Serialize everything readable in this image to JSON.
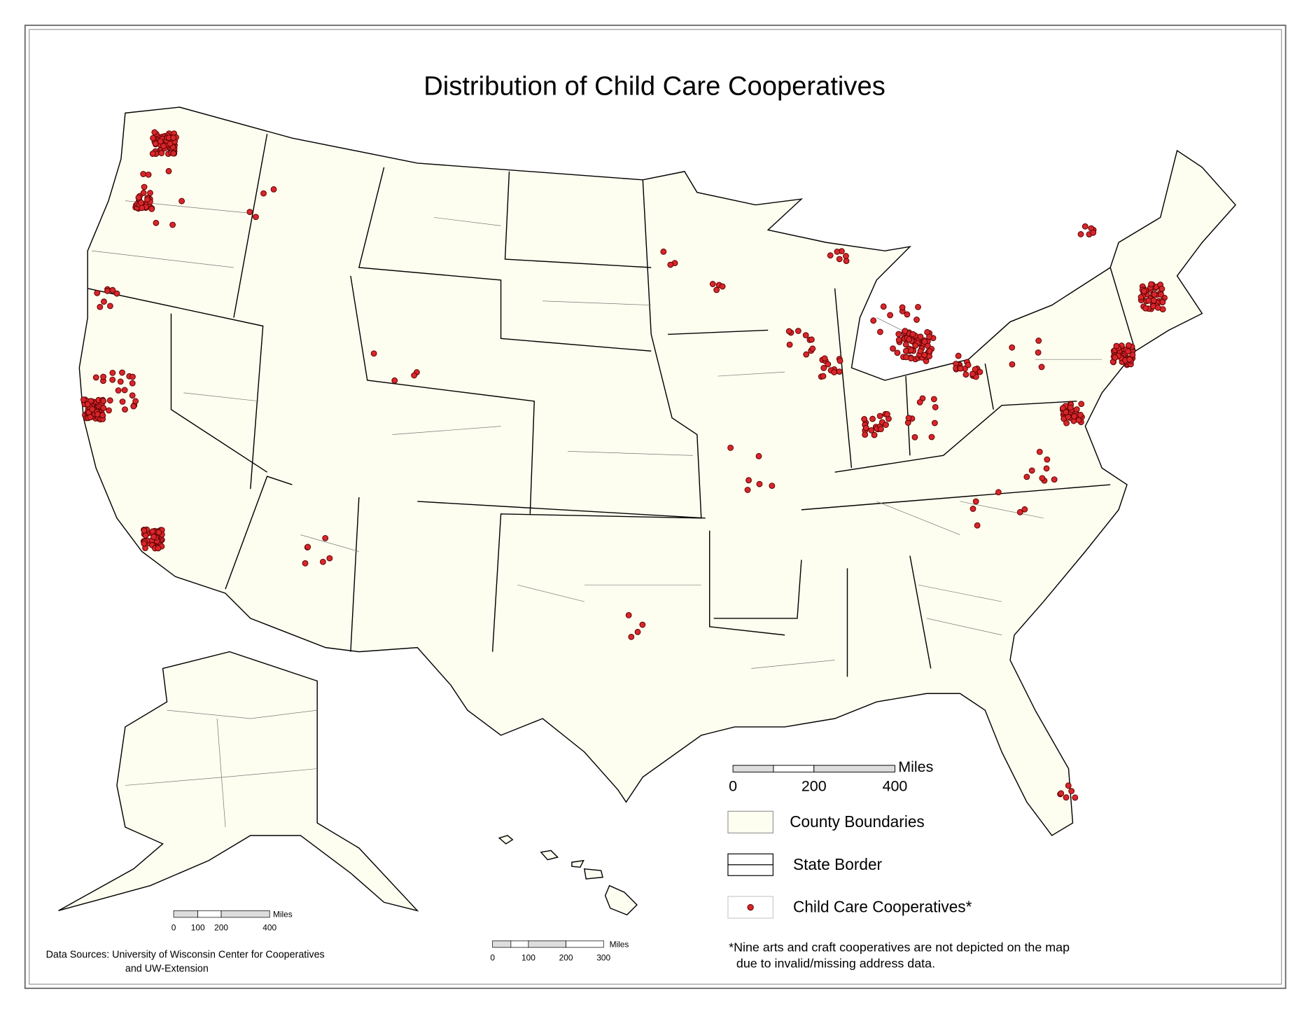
{
  "title": "Distribution of Child Care Cooperatives",
  "legend": {
    "scale": {
      "unit": "Miles",
      "ticks": [
        0,
        200,
        400
      ]
    },
    "items": [
      "County Boundaries",
      "State Border",
      "Child Care Cooperatives*"
    ]
  },
  "alaska_scale": {
    "unit": "Miles",
    "ticks": [
      0,
      100,
      200,
      400
    ]
  },
  "hawaii_scale": {
    "unit": "Miles",
    "ticks": [
      0,
      100,
      200,
      300
    ]
  },
  "data_sources": [
    "Data Sources: University of Wisconsin Center for Cooperatives",
    "and UW-Extension"
  ],
  "footnote": [
    "*Nine arts and craft cooperatives are not depicted on the map",
    "due to invalid/missing address data."
  ]
}
